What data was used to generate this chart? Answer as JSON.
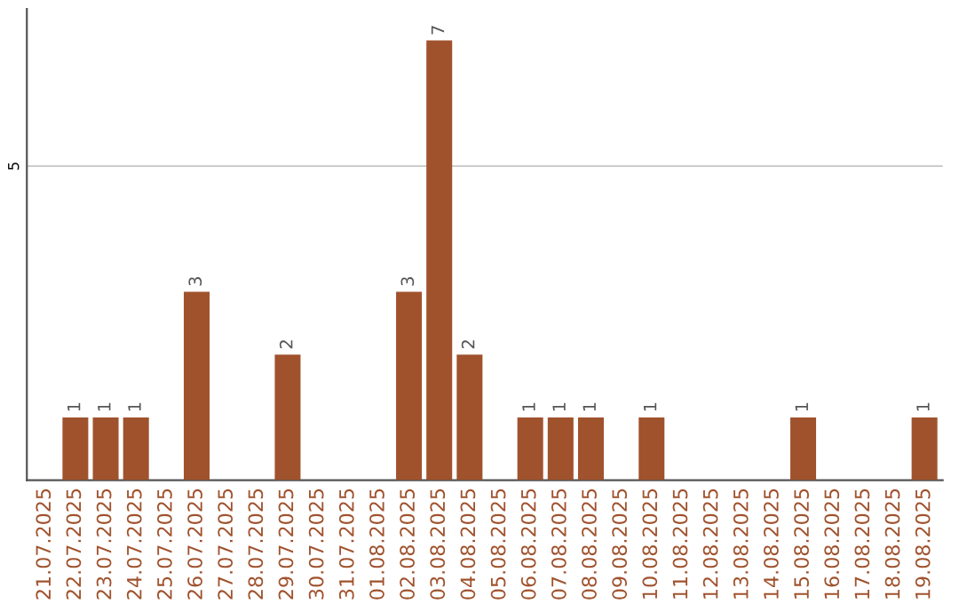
{
  "chart_data": {
    "type": "bar",
    "categories": [
      "21.07.2025",
      "22.07.2025",
      "23.07.2025",
      "24.07.2025",
      "25.07.2025",
      "26.07.2025",
      "27.07.2025",
      "28.07.2025",
      "29.07.2025",
      "30.07.2025",
      "31.07.2025",
      "01.08.2025",
      "02.08.2025",
      "03.08.2025",
      "04.08.2025",
      "05.08.2025",
      "06.08.2025",
      "07.08.2025",
      "08.08.2025",
      "09.08.2025",
      "10.08.2025",
      "11.08.2025",
      "12.08.2025",
      "13.08.2025",
      "14.08.2025",
      "15.08.2025",
      "16.08.2025",
      "17.08.2025",
      "18.08.2025",
      "19.08.2025"
    ],
    "values": [
      0,
      1,
      1,
      1,
      0,
      3,
      0,
      0,
      2,
      0,
      0,
      0,
      3,
      7,
      2,
      0,
      1,
      1,
      1,
      0,
      1,
      0,
      0,
      0,
      0,
      1,
      0,
      0,
      0,
      1
    ],
    "color": "#a0522d",
    "ylim": [
      0,
      7.5
    ],
    "yticks": [
      5
    ],
    "grid": "y",
    "value_labels": [
      null,
      "1",
      "1",
      "1",
      null,
      "3",
      null,
      null,
      "2",
      null,
      null,
      null,
      "3",
      "7",
      "2",
      null,
      "1",
      "1",
      "1",
      null,
      "1",
      null,
      null,
      null,
      null,
      "1",
      null,
      null,
      null,
      "1"
    ]
  }
}
